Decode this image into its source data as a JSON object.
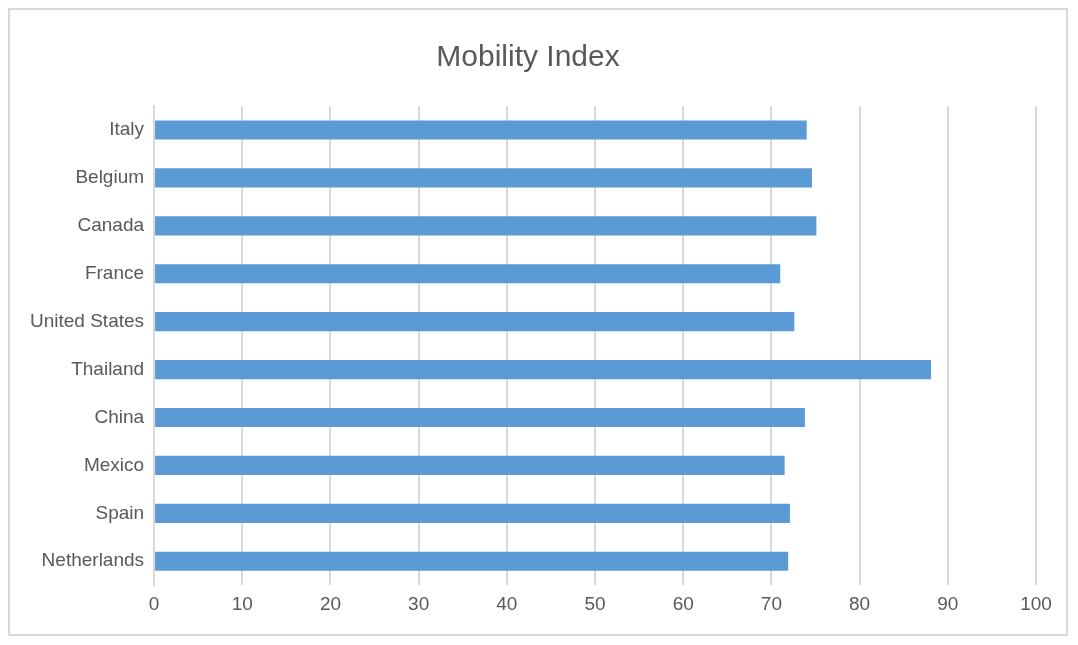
{
  "chart_data": {
    "type": "bar",
    "orientation": "horizontal",
    "title": "Mobility Index",
    "categories": [
      "Italy",
      "Belgium",
      "Canada",
      "France",
      "United States",
      "Thailand",
      "China",
      "Mexico",
      "Spain",
      "Netherlands"
    ],
    "values": [
      74.0,
      74.6,
      75.1,
      71.0,
      72.6,
      88.1,
      73.8,
      71.5,
      72.1,
      71.9
    ],
    "color": "#5b9bd5",
    "xlim": [
      0,
      100
    ],
    "xticks": [
      0,
      10,
      20,
      30,
      40,
      50,
      60,
      70,
      80,
      90,
      100
    ],
    "grid": "x",
    "legend": false
  }
}
